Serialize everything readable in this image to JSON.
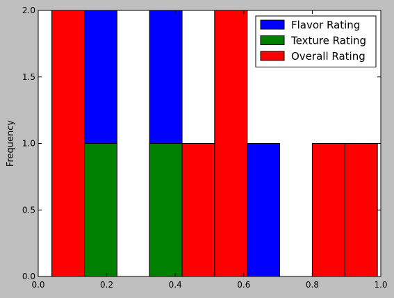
{
  "chart_data": {
    "type": "bar",
    "title": "",
    "xlabel": "",
    "ylabel": "Frequency",
    "xlim": [
      0.0,
      1.0
    ],
    "ylim": [
      0.0,
      2.0
    ],
    "xticks": [
      0.0,
      0.2,
      0.4,
      0.6,
      0.8,
      1.0
    ],
    "xtick_labels": [
      "0.0",
      "0.2",
      "0.4",
      "0.6",
      "0.8",
      "1.0"
    ],
    "yticks": [
      0.0,
      0.5,
      1.0,
      1.5,
      2.0
    ],
    "ytick_labels": [
      "0.0",
      "0.5",
      "1.0",
      "1.5",
      "2.0"
    ],
    "bin_edges": [
      0.04,
      0.135,
      0.23,
      0.325,
      0.42,
      0.515,
      0.61,
      0.705,
      0.8,
      0.895,
      0.99
    ],
    "grid": false,
    "legend_position": "top-right",
    "series": [
      {
        "name": "Flavor Rating",
        "color": "#0000ff",
        "values": [
          2,
          2,
          0,
          2,
          1,
          2,
          1,
          0,
          0,
          1
        ]
      },
      {
        "name": "Texture Rating",
        "color": "#008000",
        "values": [
          0,
          1,
          0,
          1,
          0,
          0,
          0,
          0,
          0,
          0
        ]
      },
      {
        "name": "Overall Rating",
        "color": "#ff0000",
        "values": [
          2,
          0,
          0,
          0,
          1,
          2,
          0,
          0,
          1,
          1
        ]
      }
    ]
  }
}
